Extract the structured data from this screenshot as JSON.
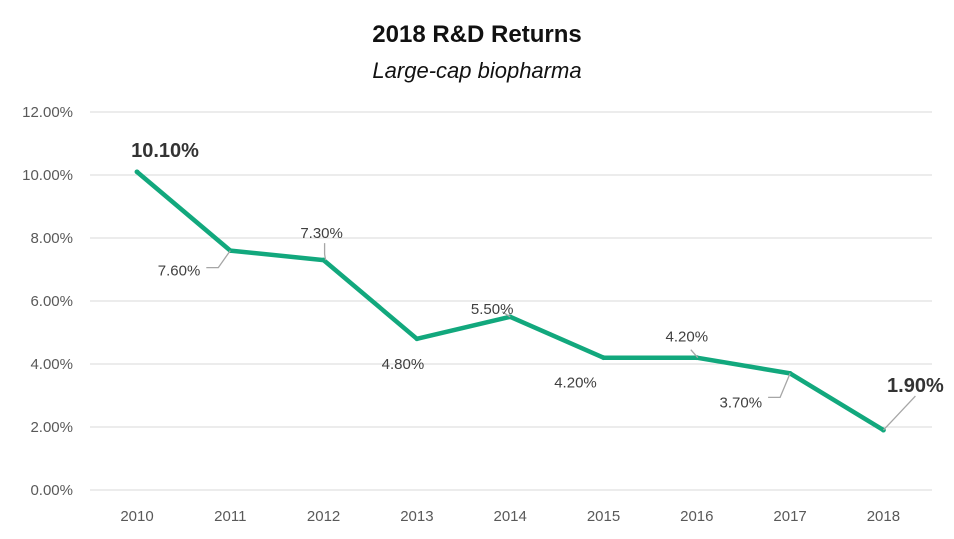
{
  "chart_data": {
    "type": "line",
    "title": "2018 R&D Returns",
    "subtitle": "Large-cap biopharma",
    "xlabel": "",
    "ylabel": "",
    "categories": [
      "2010",
      "2011",
      "2012",
      "2013",
      "2014",
      "2015",
      "2016",
      "2017",
      "2018"
    ],
    "series": [
      {
        "values": [
          10.1,
          7.6,
          7.3,
          4.8,
          5.5,
          4.2,
          4.2,
          3.7,
          1.9
        ],
        "color": "#12a87d"
      }
    ],
    "data_labels": [
      "10.10%",
      "7.60%",
      "7.30%",
      "4.80%",
      "5.50%",
      "4.20%",
      "4.20%",
      "3.70%",
      "1.90%"
    ],
    "ylim": [
      0,
      12
    ],
    "yticks": [
      0,
      2,
      4,
      6,
      8,
      10,
      12
    ],
    "ytick_labels": [
      "0.00%",
      "2.00%",
      "4.00%",
      "6.00%",
      "8.00%",
      "10.00%",
      "12.00%"
    ],
    "grid": true,
    "legend": "none"
  }
}
